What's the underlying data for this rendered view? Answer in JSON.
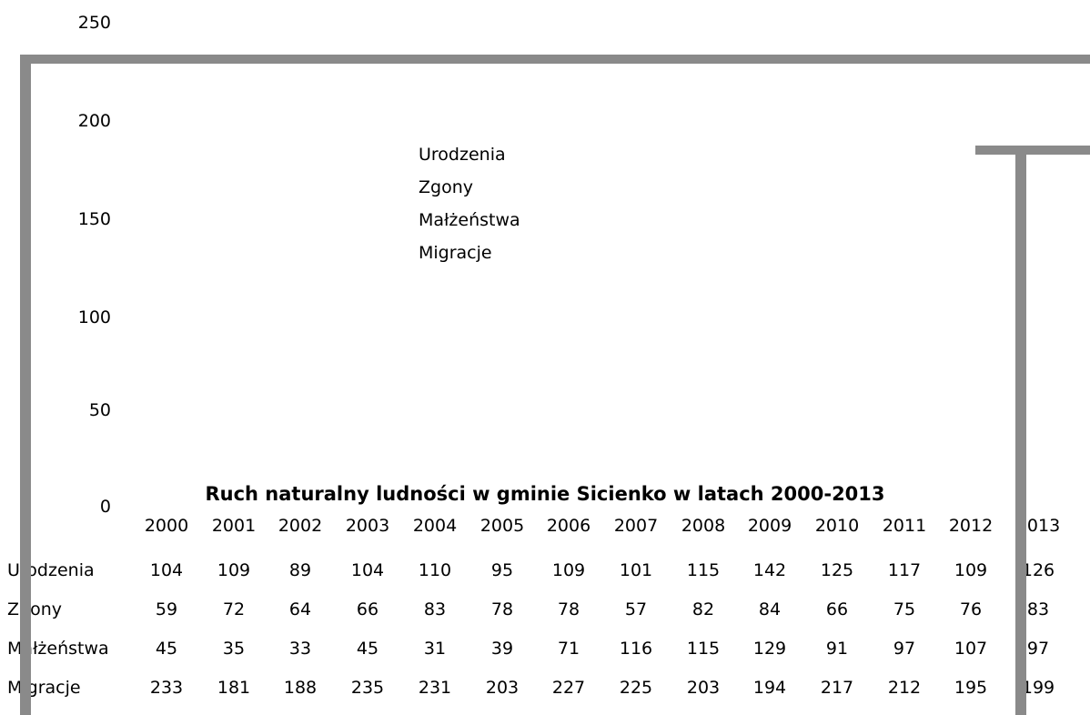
{
  "chart_data": {
    "type": "table",
    "title": "Ruch naturalny ludności w gminie Sicienko w latach 2000-2013",
    "y_ticks": [
      "250",
      "200",
      "150",
      "100",
      "50",
      "0"
    ],
    "ylim": [
      0,
      250
    ],
    "legend": [
      "Urodzenia",
      "Zgony",
      "Małżeństwa",
      "Migracje"
    ],
    "categories": [
      "2000",
      "2001",
      "2002",
      "2003",
      "2004",
      "2005",
      "2006",
      "2007",
      "2008",
      "2009",
      "2010",
      "2011",
      "2012",
      "2013"
    ],
    "series": [
      {
        "name": "Urodzenia",
        "values": [
          104,
          109,
          89,
          104,
          110,
          95,
          109,
          101,
          115,
          142,
          125,
          117,
          109,
          126
        ]
      },
      {
        "name": "Zgony",
        "values": [
          59,
          72,
          64,
          66,
          83,
          78,
          78,
          57,
          82,
          84,
          66,
          75,
          76,
          83
        ]
      },
      {
        "name": "Małżeństwa",
        "values": [
          45,
          35,
          33,
          45,
          31,
          39,
          71,
          116,
          115,
          129,
          91,
          97,
          107,
          97
        ]
      },
      {
        "name": "Migracje",
        "values": [
          233,
          181,
          188,
          235,
          231,
          203,
          227,
          225,
          203,
          194,
          217,
          212,
          195,
          199
        ]
      }
    ]
  }
}
